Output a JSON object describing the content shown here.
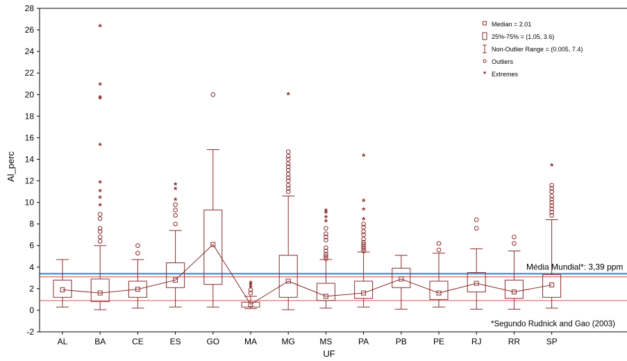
{
  "chart_data": {
    "type": "box",
    "xlabel": "UF",
    "ylabel": "Al_perc",
    "ylim": [
      -2,
      28
    ],
    "yticks": [
      -2,
      0,
      2,
      4,
      6,
      8,
      10,
      12,
      14,
      16,
      18,
      20,
      22,
      24,
      26,
      28
    ],
    "grid": false,
    "legend_position": "top-right",
    "categories": [
      "AL",
      "BA",
      "CE",
      "ES",
      "GO",
      "MA",
      "MG",
      "MS",
      "PA",
      "PB",
      "PE",
      "RJ",
      "RR",
      "SP"
    ],
    "medians": [
      1.9,
      1.6,
      1.95,
      2.8,
      6.1,
      0.55,
      2.7,
      1.3,
      1.6,
      2.9,
      1.6,
      2.5,
      1.7,
      2.35
    ],
    "q1": [
      1.2,
      0.8,
      1.2,
      2.1,
      2.4,
      0.3,
      1.2,
      0.9,
      1.1,
      2.1,
      1.0,
      1.7,
      1.1,
      1.2
    ],
    "q3": [
      2.8,
      2.9,
      2.7,
      4.4,
      9.3,
      0.75,
      5.1,
      2.5,
      2.7,
      3.9,
      2.7,
      3.5,
      2.8,
      3.3
    ],
    "whisker_low": [
      0.3,
      0.05,
      0.2,
      0.3,
      0.3,
      0.15,
      0.05,
      0.2,
      0.3,
      0.1,
      0.3,
      0.1,
      0.1,
      0.2
    ],
    "whisker_high": [
      4.7,
      6.0,
      4.7,
      7.4,
      14.9,
      1.3,
      10.6,
      4.7,
      5.4,
      5.1,
      5.3,
      5.7,
      5.5,
      8.4
    ],
    "outliers": [
      [],
      [
        6.4,
        6.8,
        7.3,
        7.6,
        8.5,
        8.9
      ],
      [
        5.3,
        6.0
      ],
      [
        8.0,
        8.8,
        9.3,
        9.8
      ],
      [
        20.0
      ],
      [
        1.6,
        1.9
      ],
      [
        11.0,
        11.3,
        11.6,
        12.0,
        12.3,
        12.6,
        13.0,
        13.3,
        13.6,
        14.0,
        14.3,
        14.7
      ],
      [
        4.8,
        5.0,
        5.2,
        5.5,
        5.8,
        6.5,
        6.8,
        7.1,
        7.6
      ],
      [
        5.5,
        5.7,
        5.9,
        6.1,
        6.3,
        6.6,
        7.0,
        7.3,
        7.7,
        8.0
      ],
      [],
      [
        5.6,
        6.2
      ],
      [
        7.6,
        8.4
      ],
      [
        6.2,
        6.8
      ],
      [
        8.8,
        9.1,
        9.4,
        9.7,
        10.0,
        10.3,
        10.6,
        11.0,
        11.3,
        11.6
      ]
    ],
    "extremes": [
      [],
      [
        9.7,
        10.4,
        11.0,
        11.8,
        15.3,
        19.6,
        19.7,
        20.9,
        26.3
      ],
      [],
      [
        10.2,
        11.2,
        11.6
      ],
      [],
      [
        2.1,
        2.3,
        2.5
      ],
      [
        20.0
      ],
      [
        8.2,
        8.6,
        9.0,
        9.2
      ],
      [
        8.4,
        9.3,
        10.1,
        14.3
      ],
      [],
      [],
      [],
      [],
      [
        13.4
      ]
    ],
    "reference_lines": [
      {
        "value": 3.39,
        "color": "#5b9bd5",
        "label": "Média Mundial*: 3,39 ppm"
      },
      {
        "value": 3.1,
        "color": "#e06666"
      },
      {
        "value": 0.9,
        "color": "#e06666"
      }
    ],
    "footnote": "*Segundo Rudnick and Gao (2003)",
    "legend": [
      {
        "symbol": "square-dot",
        "label": "Median = 2.01"
      },
      {
        "symbol": "box",
        "label": "25%-75%     = (1.05, 3.6)"
      },
      {
        "symbol": "whisker",
        "label": "Non-Outlier Range     = (0.005, 7.4)"
      },
      {
        "symbol": "circle",
        "label": "Outliers"
      },
      {
        "symbol": "star",
        "label": "Extremes"
      }
    ]
  },
  "colors": {
    "series": "#8b2a2a",
    "world_line": "#5b9bd5",
    "bound_line": "#e06666",
    "axis": "#000000"
  }
}
